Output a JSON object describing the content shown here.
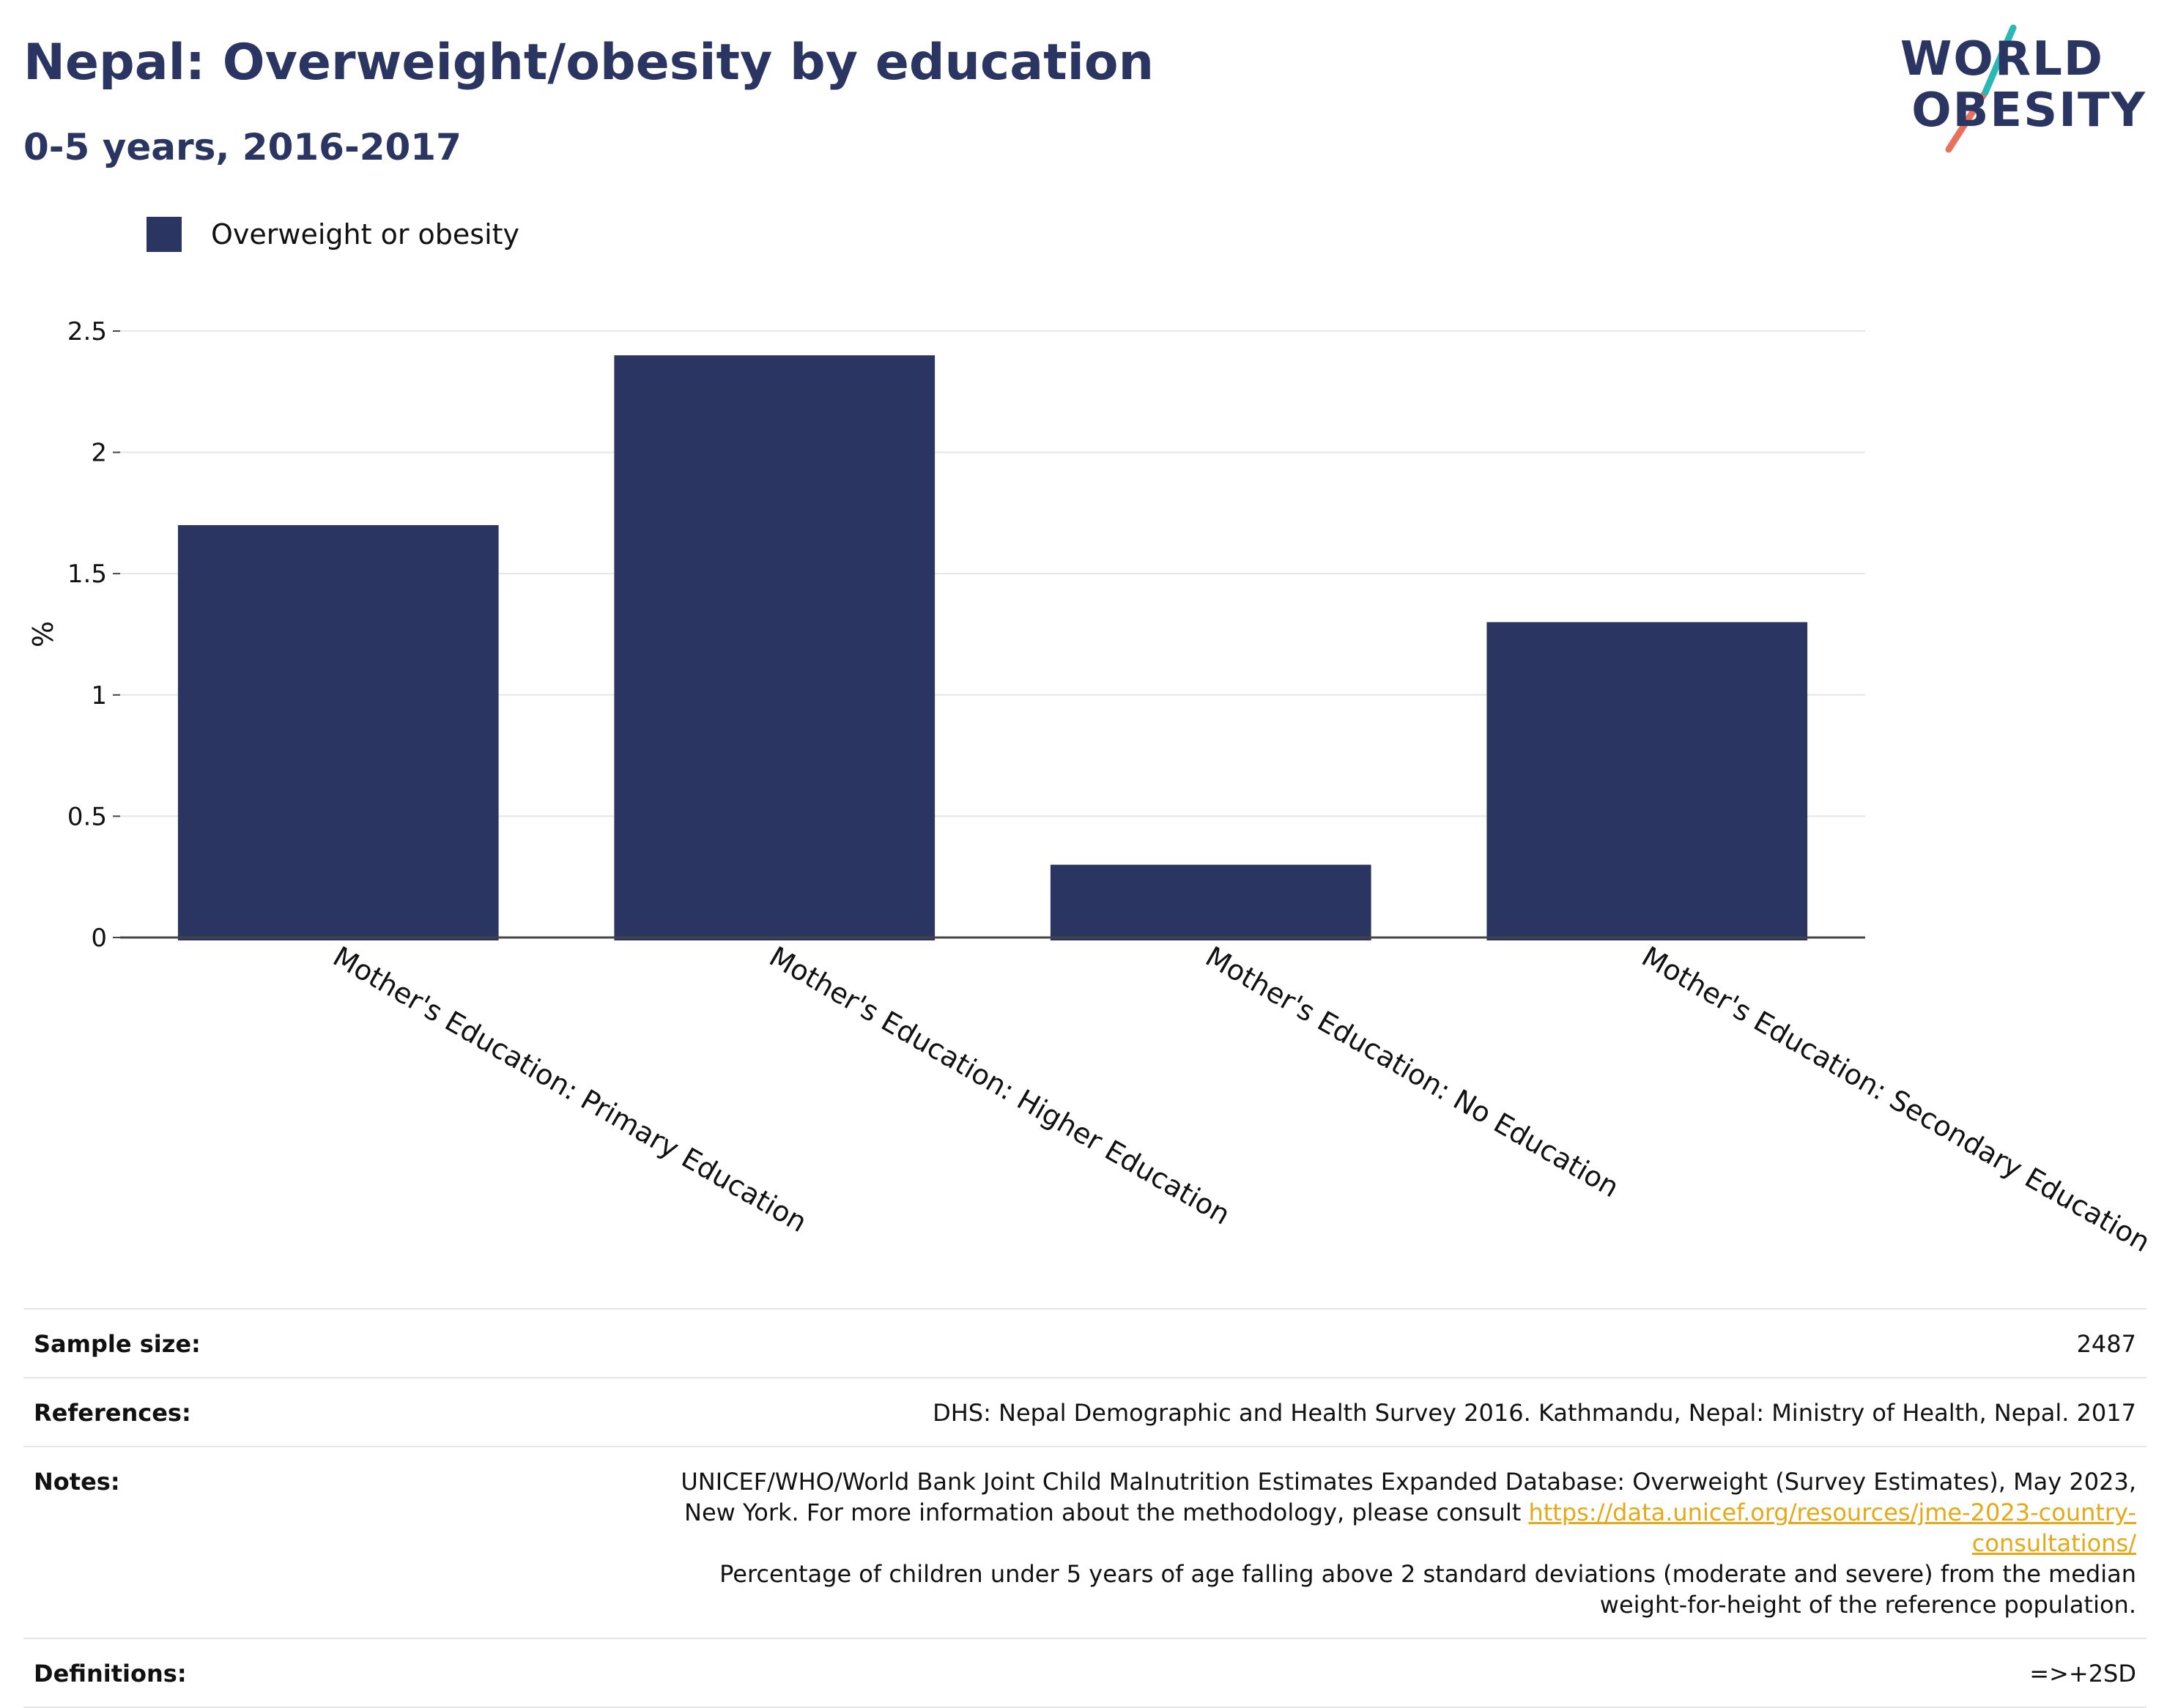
{
  "header": {
    "title": "Nepal: Overweight/obesity by education",
    "subtitle": "0-5 years, 2016-2017"
  },
  "logo": {
    "line1": "WORLD",
    "line2": "OBESITY"
  },
  "colors": {
    "bar": "#2b3562",
    "accent_teal": "#2bb7b3",
    "accent_coral": "#e8705f",
    "link": "#e6a817"
  },
  "chart_data": {
    "type": "bar",
    "categories": [
      "Mother's Education: Primary Education",
      "Mother's Education: Higher Education",
      "Mother's Education: No Education",
      "Mother's Education: Secondary Education"
    ],
    "series": [
      {
        "name": "Overweight or obesity",
        "values": [
          1.7,
          2.4,
          0.3,
          1.3
        ]
      }
    ],
    "ylabel": "%",
    "ylim": [
      0,
      2.5
    ],
    "yticks": [
      "0",
      "0.5",
      "1",
      "1.5",
      "2",
      "2.5"
    ],
    "grid": true,
    "legend": "top-left"
  },
  "info": {
    "sample_size_label": "Sample size:",
    "sample_size_value": "2487",
    "references_label": "References:",
    "references_value": "DHS: Nepal Demographic and Health Survey 2016. Kathmandu, Nepal: Ministry of Health, Nepal. 2017",
    "notes_label": "Notes:",
    "notes_text_1": "UNICEF/WHO/World Bank Joint Child Malnutrition Estimates Expanded Database: Overweight (Survey Estimates), May 2023, New York. For more information about the methodology, please consult ",
    "notes_link": "https://data.unicef.org/resources/jme-2023-country-consultations/",
    "notes_text_2": "Percentage of children under 5 years of age falling above 2 standard deviations (moderate and severe) from the median weight-for-height of the reference population.",
    "definitions_label": "Definitions:",
    "definitions_value": "=>+2SD"
  }
}
